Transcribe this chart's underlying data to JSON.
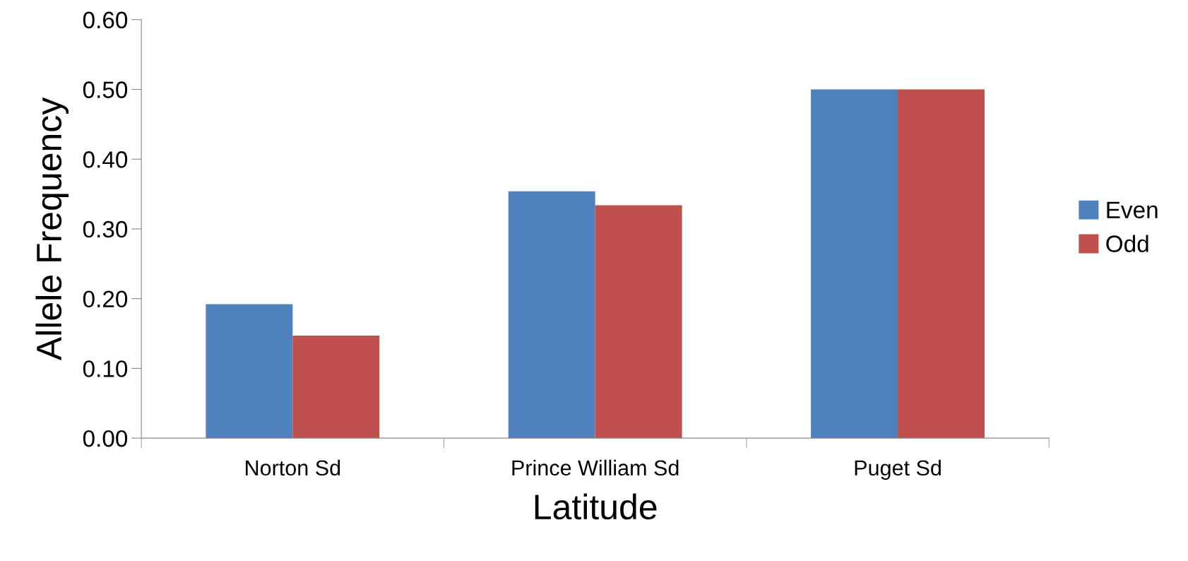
{
  "chart_data": {
    "type": "bar",
    "xlabel": "Latitude",
    "ylabel": "Allele Frequency",
    "categories": [
      "Norton Sd",
      "Prince William Sd",
      "Puget Sd"
    ],
    "series": [
      {
        "name": "Even",
        "color": "#4f81bd",
        "values": [
          0.192,
          0.354,
          0.5
        ]
      },
      {
        "name": "Odd",
        "color": "#c0504d",
        "values": [
          0.147,
          0.334,
          0.5
        ]
      }
    ],
    "ylim": [
      0,
      0.6
    ],
    "yticks": [
      {
        "value": 0,
        "label": "0.00"
      },
      {
        "value": 0.1,
        "label": "0.10"
      },
      {
        "value": 0.2,
        "label": "0.20"
      },
      {
        "value": 0.3,
        "label": "0.30"
      },
      {
        "value": 0.4,
        "label": "0.40"
      },
      {
        "value": 0.5,
        "label": "0.50"
      },
      {
        "value": 0.6,
        "label": "0.60"
      }
    ],
    "grid": false,
    "legend": "right"
  }
}
